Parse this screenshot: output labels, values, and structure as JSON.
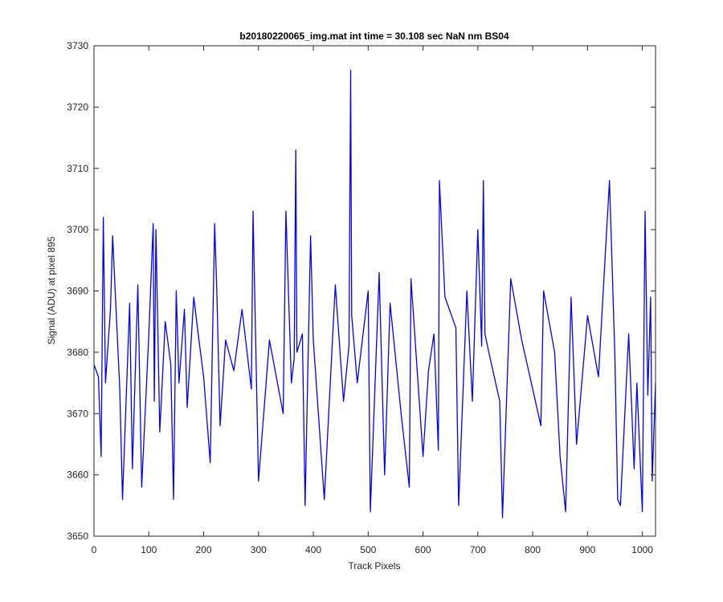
{
  "chart_data": {
    "type": "line",
    "title": "b20180220065_img.mat int time = 30.108 sec  NaN nm BS04",
    "xlabel": "Track Pixels",
    "ylabel": "Signal (ADU) at pixel 895",
    "xlim": [
      0,
      1024
    ],
    "ylim": [
      3650,
      3730
    ],
    "xticks": [
      0,
      100,
      200,
      300,
      400,
      500,
      600,
      700,
      800,
      900,
      1000
    ],
    "yticks": [
      3650,
      3660,
      3670,
      3680,
      3690,
      3700,
      3710,
      3720,
      3730
    ],
    "grid": false,
    "legend": "none",
    "line_color": "#0000ff",
    "series": [
      {
        "x": [
          0,
          8,
          13,
          17,
          21,
          30,
          34,
          47,
          52,
          65,
          70,
          80,
          87,
          100,
          108,
          110,
          113,
          120,
          130,
          140,
          145,
          150,
          155,
          165,
          170,
          182,
          190,
          200,
          212,
          220,
          224,
          230,
          240,
          255,
          270,
          287,
          290,
          300,
          320,
          345,
          350,
          360,
          365,
          368,
          370,
          380,
          385,
          395,
          400,
          420,
          440,
          455,
          465,
          468,
          470,
          480,
          500,
          504,
          520,
          530,
          540,
          560,
          575,
          578,
          600,
          610,
          620,
          628,
          630,
          640,
          660,
          665,
          680,
          690,
          700,
          707,
          710,
          713,
          720,
          740,
          745,
          760,
          780,
          800,
          815,
          820,
          840,
          850,
          860,
          870,
          880,
          900,
          920,
          935,
          940,
          950,
          955,
          960,
          975,
          985,
          990,
          1000,
          1005,
          1010,
          1015,
          1018,
          1024
        ],
        "y": [
          3678,
          3676,
          3663,
          3702,
          3675,
          3687,
          3699,
          3674,
          3656,
          3688,
          3661,
          3691,
          3658,
          3683,
          3701,
          3672,
          3700,
          3667,
          3685,
          3678,
          3656,
          3690,
          3675,
          3687,
          3671,
          3689,
          3683,
          3676,
          3662,
          3701,
          3690,
          3668,
          3682,
          3677,
          3687,
          3674,
          3703,
          3659,
          3682,
          3670,
          3703,
          3675,
          3679,
          3713,
          3680,
          3683,
          3655,
          3699,
          3682,
          3656,
          3691,
          3672,
          3681,
          3726,
          3686,
          3675,
          3690,
          3654,
          3693,
          3660,
          3688,
          3670,
          3658,
          3692,
          3663,
          3677,
          3683,
          3664,
          3708,
          3689,
          3684,
          3655,
          3690,
          3672,
          3700,
          3681,
          3708,
          3683,
          3680,
          3672,
          3653,
          3692,
          3682,
          3674,
          3668,
          3690,
          3680,
          3663,
          3654,
          3689,
          3665,
          3686,
          3676,
          3700,
          3708,
          3679,
          3656,
          3655,
          3683,
          3661,
          3675,
          3654,
          3703,
          3673,
          3689,
          3659,
          3675
        ]
      }
    ]
  }
}
